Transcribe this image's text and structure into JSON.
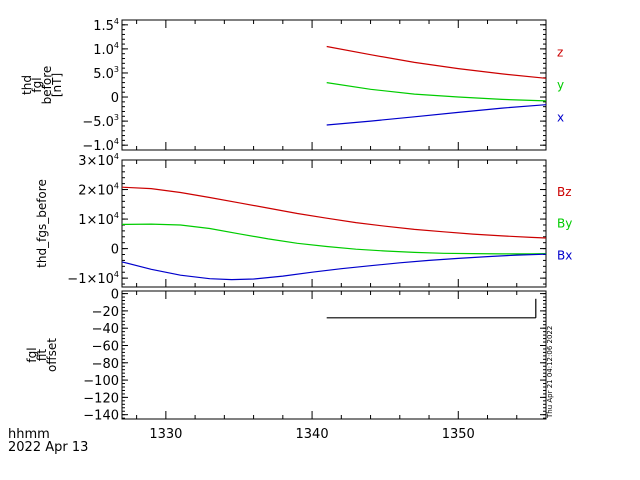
{
  "footer": {
    "time_label": "hhmm",
    "date_label": "2022 Apr 13"
  },
  "timestamp": "Thu Apr 21 04:12:06 2022",
  "chart_data": [
    {
      "type": "line",
      "ylabel_lines": [
        "thd",
        "fgl",
        "before",
        "[nT]"
      ],
      "xlim": [
        1327,
        1356
      ],
      "ylim": [
        -11000,
        16000
      ],
      "yticks": [
        {
          "v": 15000,
          "m": "1.5",
          "e": "4"
        },
        {
          "v": 10000,
          "m": "1.0",
          "e": "4"
        },
        {
          "v": 5000,
          "m": "5.0",
          "e": "3"
        },
        {
          "v": 0,
          "m": "0",
          "e": ""
        },
        {
          "v": -5000,
          "m": "−5.0",
          "e": "3"
        },
        {
          "v": -10000,
          "m": "−1.0",
          "e": "4"
        }
      ],
      "series": [
        {
          "name": "z",
          "color": "#cc0000",
          "x": [
            1341,
            1344,
            1347,
            1350,
            1353,
            1356
          ],
          "y": [
            10500,
            8800,
            7200,
            5900,
            4800,
            3900
          ]
        },
        {
          "name": "y",
          "color": "#00cc00",
          "x": [
            1341,
            1344,
            1347,
            1350,
            1353,
            1356
          ],
          "y": [
            3000,
            1600,
            600,
            0,
            -500,
            -800
          ]
        },
        {
          "name": "x",
          "color": "#0000cc",
          "x": [
            1341,
            1344,
            1347,
            1350,
            1353,
            1356
          ],
          "y": [
            -5800,
            -5000,
            -4100,
            -3200,
            -2300,
            -1600
          ]
        }
      ]
    },
    {
      "type": "line",
      "ylabel_lines": [
        "thd_fgs_before"
      ],
      "xlim": [
        1327,
        1356
      ],
      "ylim": [
        -13000,
        30000
      ],
      "yticks": [
        {
          "v": 30000,
          "m": "3×10",
          "e": "4"
        },
        {
          "v": 20000,
          "m": "2×10",
          "e": "4"
        },
        {
          "v": 10000,
          "m": "1×10",
          "e": "4"
        },
        {
          "v": 0,
          "m": "0",
          "e": ""
        },
        {
          "v": -10000,
          "m": "−1×10",
          "e": "4"
        }
      ],
      "series": [
        {
          "name": "Bz",
          "color": "#cc0000",
          "x": [
            1327,
            1329,
            1331,
            1333,
            1335,
            1337,
            1339,
            1341,
            1343,
            1345,
            1347,
            1349,
            1351,
            1353,
            1355,
            1356
          ],
          "y": [
            20800,
            20300,
            19000,
            17300,
            15500,
            13700,
            11900,
            10300,
            8800,
            7600,
            6500,
            5700,
            4900,
            4300,
            3800,
            3600
          ]
        },
        {
          "name": "By",
          "color": "#00cc00",
          "x": [
            1327,
            1329,
            1331,
            1333,
            1335,
            1337,
            1339,
            1341,
            1343,
            1345,
            1347,
            1349,
            1351,
            1353,
            1355,
            1356
          ],
          "y": [
            8200,
            8300,
            8000,
            6800,
            5000,
            3300,
            1800,
            700,
            -200,
            -800,
            -1300,
            -1600,
            -1700,
            -1800,
            -1800,
            -1700
          ]
        },
        {
          "name": "Bx",
          "color": "#0000cc",
          "x": [
            1327,
            1329,
            1331,
            1333,
            1334.5,
            1336,
            1338,
            1340,
            1342,
            1344,
            1346,
            1348,
            1350,
            1352,
            1354,
            1356
          ],
          "y": [
            -4500,
            -7000,
            -9000,
            -10200,
            -10500,
            -10300,
            -9300,
            -8000,
            -6800,
            -5800,
            -4800,
            -4000,
            -3300,
            -2700,
            -2200,
            -1900
          ]
        }
      ]
    },
    {
      "type": "line",
      "ylabel_lines": [
        "fgl",
        "fit",
        "offset"
      ],
      "xlim": [
        1327,
        1356
      ],
      "ylim": [
        -145,
        3
      ],
      "yticks": [
        {
          "v": 0,
          "m": "0",
          "e": ""
        },
        {
          "v": -20,
          "m": "−20",
          "e": ""
        },
        {
          "v": -40,
          "m": "−40",
          "e": ""
        },
        {
          "v": -60,
          "m": "−60",
          "e": ""
        },
        {
          "v": -80,
          "m": "−80",
          "e": ""
        },
        {
          "v": -100,
          "m": "−100",
          "e": ""
        },
        {
          "v": -120,
          "m": "−120",
          "e": ""
        },
        {
          "v": -140,
          "m": "−140",
          "e": ""
        }
      ],
      "xticks": [
        1330,
        1340,
        1350
      ],
      "series": [
        {
          "color": "#000000",
          "x": [
            1341,
            1355.3
          ],
          "y": [
            -28,
            -28
          ]
        },
        {
          "color": "#000000",
          "x": [
            1355.3,
            1355.3
          ],
          "y": [
            -28,
            -6
          ]
        }
      ]
    }
  ]
}
